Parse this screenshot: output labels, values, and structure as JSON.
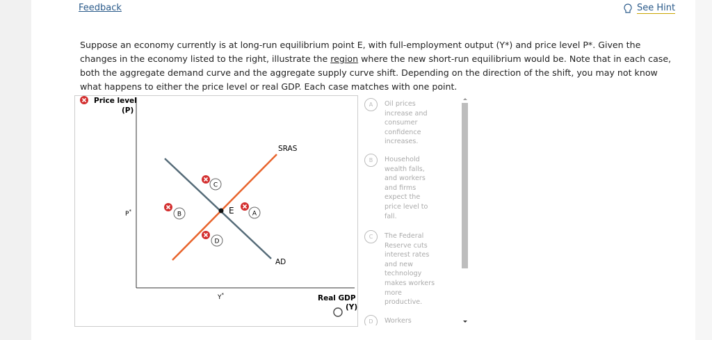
{
  "header": {
    "feedback": "Feedback",
    "hint": "See Hint"
  },
  "question": {
    "before": "Suppose an economy currently is at long-run equilibrium point E, with full-employment output (Y*) and price level P*. Given the changes in the economy listed to the right, illustrate the ",
    "link": "region",
    "after": " where the new short-run equilibrium would be. Note that in each case, both the aggregate demand curve and the aggregate supply curve shift. Depending on the direction of the shift, you may not know what happens to either the price level or real GDP. Each case matches with one point."
  },
  "graph": {
    "y_label": "Price level",
    "y_unit": "(P)",
    "p_tick": "P",
    "p_star": "*",
    "y_tick": "Y",
    "y_star": "*",
    "sras": "SRAS",
    "ad": "AD",
    "equilibrium": "E",
    "x_label": "Real GDP",
    "x_unit": "(Y)",
    "points": [
      "A",
      "B",
      "C",
      "D"
    ]
  },
  "options": [
    {
      "letter": "A",
      "text": "Oil prices increase and consumer confidence increases."
    },
    {
      "letter": "B",
      "text": "Household wealth falls, and workers and firms expect the price level to fall."
    },
    {
      "letter": "C",
      "text": "The Federal Reserve cuts interest rates and new technology makes workers more productive."
    },
    {
      "letter": "D",
      "text": "Workers"
    }
  ]
}
